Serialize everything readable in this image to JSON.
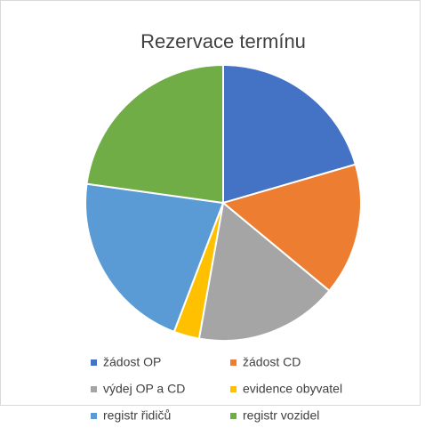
{
  "chart_data": {
    "type": "pie",
    "title": "Rezervace termínu",
    "categories": [
      "žádost OP",
      "žádost CD",
      "výdej OP a CD",
      "evidence obyvatel",
      "registr řidičů",
      "registr vozidel"
    ],
    "values": [
      20.5,
      15.5,
      16.8,
      3,
      21.4,
      22.8
    ],
    "colors": [
      "#4472c4",
      "#ed7d31",
      "#a5a5a5",
      "#ffc000",
      "#5b9bd5",
      "#70ad47"
    ]
  }
}
